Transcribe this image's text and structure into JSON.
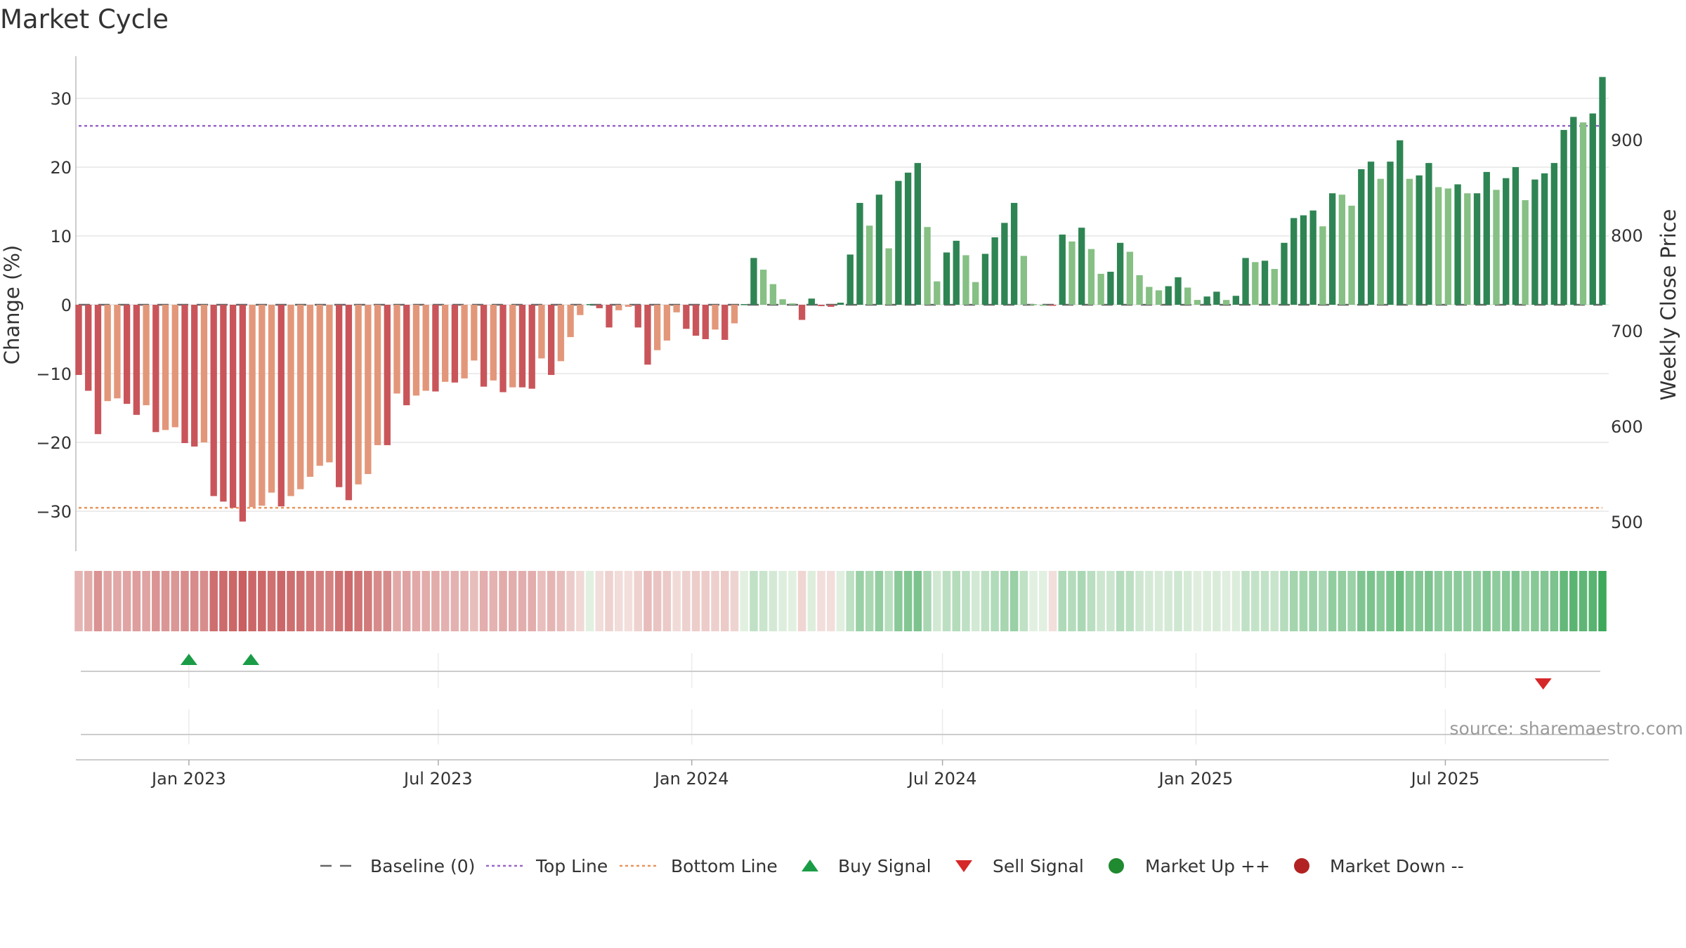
{
  "chart_data": {
    "type": "bar",
    "title": "Market Cycle",
    "ylabel": "Change (%)",
    "y2label": "Weekly Close Price",
    "ylim": [
      -35,
      35
    ],
    "yticks": [
      30,
      20,
      10,
      0,
      -10,
      -20,
      -30
    ],
    "ytick_labels": [
      "30",
      "20",
      "10",
      "0",
      "−10",
      "−20",
      "−30"
    ],
    "y2ticks": [
      900,
      800,
      700,
      600,
      500
    ],
    "top_line": 26,
    "bottom_line": -29.5,
    "x_start": "2022-10-13",
    "week_days": 7,
    "xticks": [
      {
        "label": "Jan 2023",
        "date": "2023-01-01"
      },
      {
        "label": "Jul 2023",
        "date": "2023-07-01"
      },
      {
        "label": "Jan 2024",
        "date": "2024-01-01"
      },
      {
        "label": "Jul 2024",
        "date": "2024-07-01"
      },
      {
        "label": "Jan 2025",
        "date": "2025-01-01"
      },
      {
        "label": "Jul 2025",
        "date": "2025-07-01"
      }
    ],
    "values": [
      -10.2,
      -12.5,
      -18.8,
      -14,
      -13.6,
      -14.4,
      -16,
      -14.6,
      -18.5,
      -18.2,
      -17.8,
      -20.1,
      -20.6,
      -20,
      -27.8,
      -28.6,
      -29.5,
      -31.5,
      -29.4,
      -29.2,
      -27.3,
      -29.3,
      -27.8,
      -26.8,
      -25,
      -23.4,
      -22.9,
      -26.5,
      -28.4,
      -26.1,
      -24.6,
      -20.4,
      -20.4,
      -12.9,
      -14.6,
      -13.2,
      -12.5,
      -12.6,
      -11.2,
      -11.3,
      -10.7,
      -8.1,
      -11.9,
      -11,
      -12.7,
      -12,
      -12,
      -12.2,
      -7.8,
      -10.2,
      -8.2,
      -4.7,
      -1.5,
      0.1,
      -0.5,
      -3.3,
      -0.8,
      -0.3,
      -3.3,
      -8.7,
      -6.6,
      -5.2,
      -1.1,
      -3.5,
      -4.5,
      -5,
      -3.6,
      -5.1,
      -2.7,
      0.1,
      6.8,
      5.1,
      3,
      0.8,
      0.2,
      -2.2,
      0.9,
      -0.2,
      -0.3,
      0.3,
      7.3,
      14.8,
      11.5,
      16,
      8.2,
      18,
      19.2,
      20.6,
      11.3,
      3.4,
      7.6,
      9.3,
      7.2,
      3.3,
      7.4,
      9.8,
      11.9,
      14.8,
      7.1,
      0.1,
      0,
      -0.1,
      10.2,
      9.2,
      11.2,
      8.1,
      4.5,
      4.8,
      9,
      7.7,
      4.3,
      2.6,
      2.1,
      2.7,
      4,
      2.5,
      0.7,
      1.2,
      1.9,
      0.7,
      1.3,
      6.8,
      6.2,
      6.4,
      5.2,
      9,
      12.6,
      13,
      13.7,
      11.4,
      16.2,
      16,
      14.4,
      19.7,
      20.8,
      18.3,
      20.8,
      23.9,
      18.3,
      18.8,
      20.6,
      17.1,
      16.9,
      17.5,
      16.2,
      16.2,
      19.3,
      16.7,
      18.4,
      20,
      15.2,
      18.2,
      19.1,
      20.6,
      25.4,
      27.3,
      26.5,
      27.8,
      33.1
    ],
    "buy_signals": [
      {
        "date": "2023-01-01"
      },
      {
        "date": "2023-02-15"
      }
    ],
    "sell_signals": [
      {
        "date": "2025-09-10"
      }
    ],
    "series": [
      {
        "name": "Baseline (0)",
        "color": "#666666",
        "style": "dashed"
      },
      {
        "name": "Top Line",
        "color": "#9966cc",
        "style": "dotted"
      },
      {
        "name": "Bottom Line",
        "color": "#e8955a",
        "style": "dotted"
      },
      {
        "name": "Buy Signal",
        "color": "#1a9c46",
        "marker": "triangle-up"
      },
      {
        "name": "Sell Signal",
        "color": "#d62728",
        "marker": "triangle-down"
      },
      {
        "name": "Market Up ++",
        "color": "#1f8a2f",
        "marker": "circle"
      },
      {
        "name": "Market Down --",
        "color": "#b22222",
        "marker": "circle"
      }
    ],
    "colors": {
      "strong_down": "#c9555a",
      "weak_down": "#e3977a",
      "strong_up": "#2e8553",
      "weak_up": "#86c084",
      "top_line": "#9966cc",
      "bottom_line": "#e8955a",
      "grid": "#e6e6e6"
    },
    "grid": true,
    "legend_position": "bottom"
  },
  "source": "source: sharemaestro.com"
}
